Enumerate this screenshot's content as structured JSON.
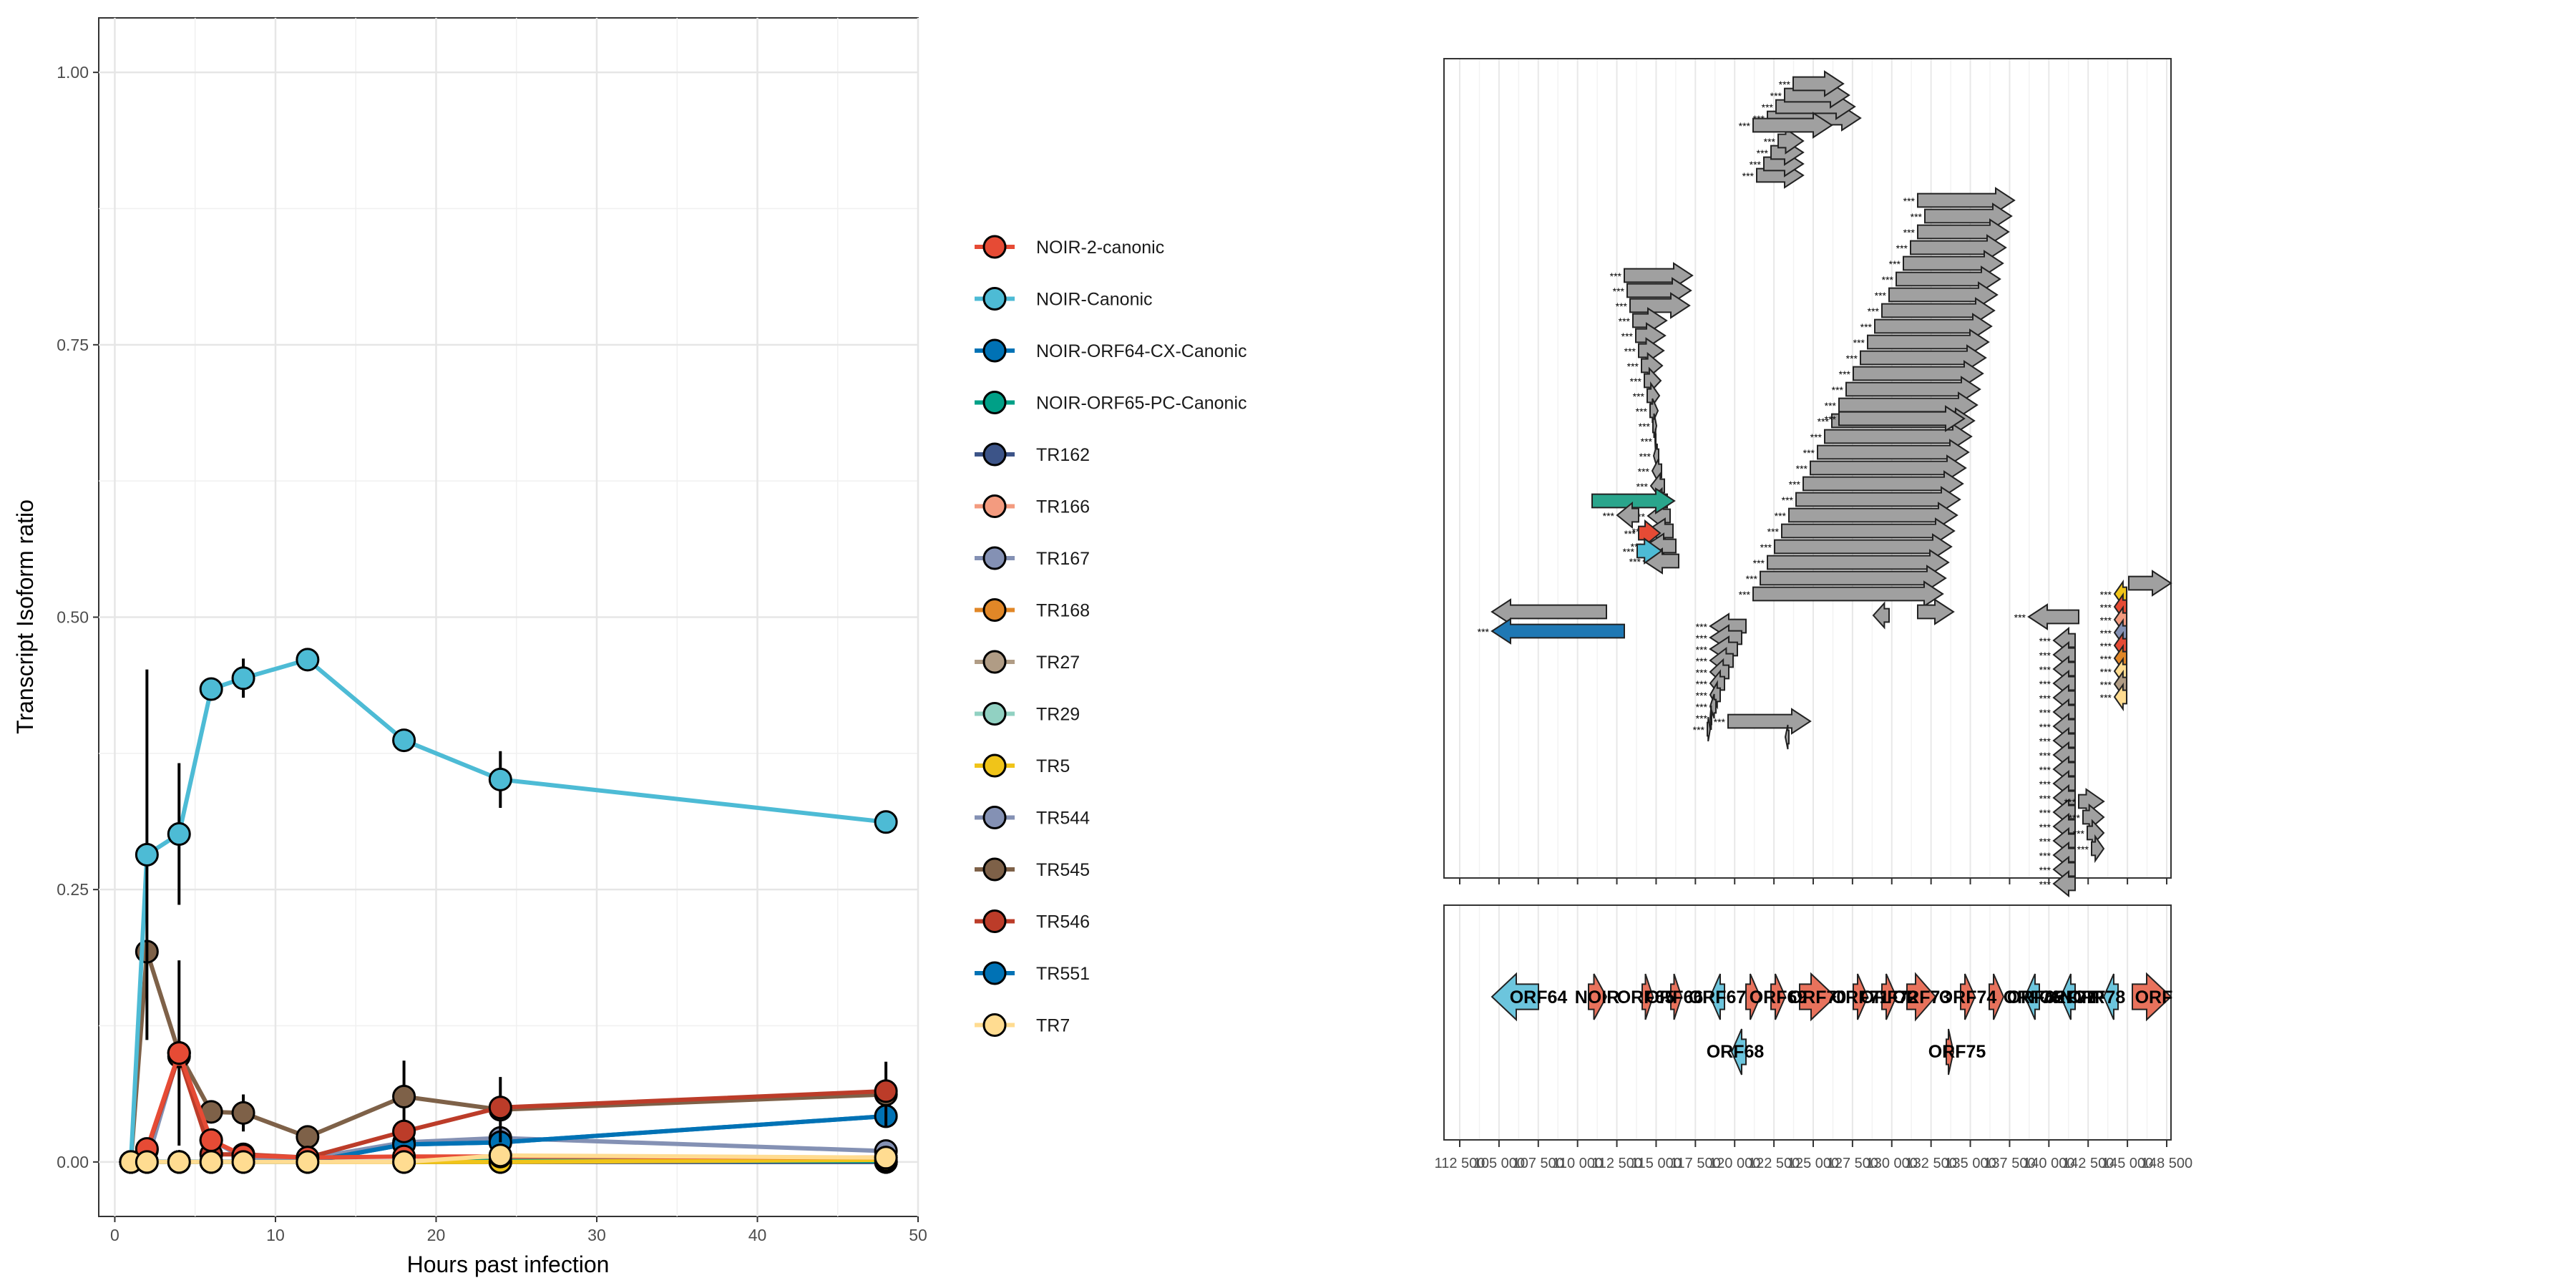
{
  "chart_data": [
    {
      "type": "line",
      "xlabel": "Hours past infection",
      "ylabel": "Transcript Isoform ratio",
      "xlim": [
        -1,
        50
      ],
      "ylim": [
        -0.05,
        1.05
      ],
      "x_ticks": [
        "0",
        "10",
        "20",
        "30",
        "40",
        "50"
      ],
      "y_ticks": [
        "0.00",
        "0.25",
        "0.50",
        "0.75",
        "1.00"
      ],
      "grid": true,
      "legend_position": "right",
      "series": [
        {
          "name": "NOIR-2-canonic",
          "color": "#E64B35",
          "points": [
            [
              1,
              0
            ],
            [
              2,
              0.012
            ],
            [
              4,
              0.1
            ],
            [
              6,
              0.02
            ],
            [
              8,
              0.006
            ],
            [
              12,
              0.004
            ],
            [
              18,
              0.005
            ],
            [
              24,
              0.005
            ],
            [
              48,
              0.004
            ]
          ],
          "err": [
            0,
            0,
            0,
            0,
            0,
            0,
            0,
            0,
            0
          ]
        },
        {
          "name": "NOIR-Canonic",
          "color": "#4DBBD5",
          "points": [
            [
              1,
              0
            ],
            [
              2,
              0.282
            ],
            [
              4,
              0.301
            ],
            [
              6,
              0.434
            ],
            [
              8,
              0.444
            ],
            [
              12,
              0.461
            ],
            [
              18,
              0.387
            ],
            [
              24,
              0.351
            ],
            [
              48,
              0.312
            ]
          ],
          "err": [
            0,
            0.17,
            0.065,
            0,
            0.018,
            0,
            0,
            0.026,
            0
          ]
        },
        {
          "name": "NOIR-ORF64-CX-Canonic",
          "color": "#0072B5",
          "points": [
            [
              1,
              0
            ],
            [
              2,
              0
            ],
            [
              4,
              0
            ],
            [
              6,
              0
            ],
            [
              8,
              0
            ],
            [
              12,
              0
            ],
            [
              18,
              0.016
            ],
            [
              24,
              0.018
            ],
            [
              48,
              0.042
            ]
          ],
          "err": [
            0,
            0,
            0,
            0,
            0,
            0,
            0,
            0,
            0
          ]
        },
        {
          "name": "NOIR-ORF65-PC-Canonic",
          "color": "#00A087",
          "points": [
            [
              1,
              0
            ],
            [
              2,
              0
            ],
            [
              4,
              0
            ],
            [
              6,
              0
            ],
            [
              8,
              0
            ],
            [
              12,
              0
            ],
            [
              18,
              0
            ],
            [
              24,
              0.001
            ],
            [
              48,
              0.001
            ]
          ],
          "err": [
            0,
            0,
            0,
            0,
            0,
            0,
            0,
            0,
            0
          ]
        },
        {
          "name": "TR162",
          "color": "#3C5488",
          "points": [
            [
              1,
              0
            ],
            [
              2,
              0
            ],
            [
              4,
              0
            ],
            [
              6,
              0
            ],
            [
              8,
              0
            ],
            [
              12,
              0
            ],
            [
              18,
              0
            ],
            [
              24,
              0
            ],
            [
              48,
              0
            ]
          ],
          "err": [
            0,
            0,
            0,
            0,
            0,
            0,
            0,
            0,
            0
          ]
        },
        {
          "name": "TR166",
          "color": "#F39B7F",
          "points": [
            [
              1,
              0
            ],
            [
              2,
              0
            ],
            [
              4,
              0
            ],
            [
              6,
              0
            ],
            [
              8,
              0
            ],
            [
              12,
              0
            ],
            [
              18,
              0
            ],
            [
              24,
              0
            ],
            [
              48,
              0
            ]
          ],
          "err": [
            0,
            0,
            0,
            0,
            0,
            0,
            0,
            0,
            0
          ]
        },
        {
          "name": "TR167",
          "color": "#8491B4",
          "points": [
            [
              1,
              0
            ],
            [
              2,
              0
            ],
            [
              4,
              0
            ],
            [
              6,
              0
            ],
            [
              8,
              0
            ],
            [
              12,
              0
            ],
            [
              18,
              0
            ],
            [
              24,
              0
            ],
            [
              48,
              0
            ]
          ],
          "err": [
            0,
            0,
            0,
            0,
            0,
            0,
            0,
            0,
            0
          ]
        },
        {
          "name": "TR168",
          "color": "#E18727",
          "points": [
            [
              1,
              0
            ],
            [
              2,
              0
            ],
            [
              4,
              0
            ],
            [
              6,
              0
            ],
            [
              8,
              0
            ],
            [
              12,
              0
            ],
            [
              18,
              0
            ],
            [
              24,
              0
            ],
            [
              48,
              0
            ]
          ],
          "err": [
            0,
            0,
            0,
            0,
            0,
            0,
            0,
            0,
            0
          ]
        },
        {
          "name": "TR27",
          "color": "#B09C85",
          "points": [
            [
              1,
              0
            ],
            [
              2,
              0
            ],
            [
              4,
              0
            ],
            [
              6,
              0
            ],
            [
              8,
              0
            ],
            [
              12,
              0
            ],
            [
              18,
              0
            ],
            [
              24,
              0
            ],
            [
              48,
              0
            ]
          ],
          "err": [
            0,
            0,
            0,
            0,
            0,
            0,
            0,
            0,
            0
          ]
        },
        {
          "name": "TR29",
          "color": "#91D1C2",
          "points": [
            [
              1,
              0
            ],
            [
              2,
              0
            ],
            [
              4,
              0
            ],
            [
              6,
              0
            ],
            [
              8,
              0
            ],
            [
              12,
              0
            ],
            [
              18,
              0
            ],
            [
              24,
              0
            ],
            [
              48,
              0
            ]
          ],
          "err": [
            0,
            0,
            0,
            0,
            0,
            0,
            0,
            0,
            0
          ]
        },
        {
          "name": "TR5",
          "color": "#F0C419",
          "points": [
            [
              1,
              0
            ],
            [
              2,
              0
            ],
            [
              4,
              0
            ],
            [
              6,
              0
            ],
            [
              8,
              0
            ],
            [
              12,
              0
            ],
            [
              18,
              0
            ],
            [
              24,
              0
            ],
            [
              48,
              0.002
            ]
          ],
          "err": [
            0,
            0,
            0,
            0,
            0,
            0,
            0,
            0,
            0
          ]
        },
        {
          "name": "TR544",
          "color": "#8491B4",
          "points": [
            [
              1,
              0
            ],
            [
              2,
              0
            ],
            [
              4,
              0.1
            ],
            [
              6,
              0.02
            ],
            [
              8,
              0.004
            ],
            [
              12,
              0.003
            ],
            [
              18,
              0.018
            ],
            [
              24,
              0.022
            ],
            [
              48,
              0.01
            ]
          ],
          "err": [
            0,
            0,
            0,
            0,
            0,
            0,
            0,
            0,
            0
          ]
        },
        {
          "name": "TR545",
          "color": "#7E6148",
          "points": [
            [
              1,
              0
            ],
            [
              2,
              0.193
            ],
            [
              4,
              0.1
            ],
            [
              6,
              0.046
            ],
            [
              8,
              0.045
            ],
            [
              12,
              0.023
            ],
            [
              18,
              0.06
            ],
            [
              24,
              0.048
            ],
            [
              48,
              0.062
            ]
          ],
          "err": [
            0,
            0,
            0.085,
            0,
            0.017,
            0,
            0.033,
            0.03,
            0.03
          ]
        },
        {
          "name": "TR546",
          "color": "#BC3C29",
          "points": [
            [
              1,
              0
            ],
            [
              2,
              0.011
            ],
            [
              4,
              0.097
            ],
            [
              6,
              0.007
            ],
            [
              8,
              0.007
            ],
            [
              12,
              0.004
            ],
            [
              18,
              0.028
            ],
            [
              24,
              0.05
            ],
            [
              48,
              0.065
            ]
          ],
          "err": [
            0,
            0,
            0,
            0,
            0,
            0,
            0,
            0,
            0
          ]
        },
        {
          "name": "TR551",
          "color": "#0072B5",
          "points": [
            [
              1,
              0
            ],
            [
              2,
              0
            ],
            [
              4,
              0
            ],
            [
              6,
              0
            ],
            [
              8,
              0
            ],
            [
              12,
              0
            ],
            [
              18,
              0.016
            ],
            [
              24,
              0.018
            ],
            [
              48,
              0.042
            ]
          ],
          "err": [
            0,
            0,
            0,
            0,
            0,
            0,
            0,
            0,
            0
          ]
        },
        {
          "name": "TR7",
          "color": "#FFDC91",
          "points": [
            [
              1,
              0
            ],
            [
              2,
              0
            ],
            [
              4,
              0
            ],
            [
              6,
              0
            ],
            [
              8,
              0
            ],
            [
              12,
              0
            ],
            [
              18,
              0
            ],
            [
              24,
              0.006
            ],
            [
              48,
              0.004
            ]
          ],
          "err": [
            0,
            0,
            0,
            0,
            0,
            0,
            0,
            0,
            0
          ]
        }
      ]
    },
    {
      "type": "gene-track",
      "x_ticks": [
        "112 500",
        "105 000",
        "107 500",
        "110 000",
        "112 500",
        "115 000",
        "117 500",
        "120 000",
        "122 500",
        "125 000",
        "127 500",
        "130 000",
        "132 500",
        "135 000",
        "137 500",
        "140 000",
        "142 500",
        "145 000",
        "148 500"
      ],
      "gene_labels": [
        "ORF64",
        "NOIR",
        "ORF65",
        "ORF66",
        "ORF67",
        "ORF68",
        "ORF69",
        "ORF70",
        "ORF71",
        "ORF72",
        "ORF73",
        "ORF74",
        "ORF75",
        "ORF76",
        "ORF77",
        "ORF78",
        "ORF65",
        "NOIR",
        "ORF"
      ],
      "upper_track_note": "stacked transcript isoform arrows with *** significance marks"
    }
  ]
}
